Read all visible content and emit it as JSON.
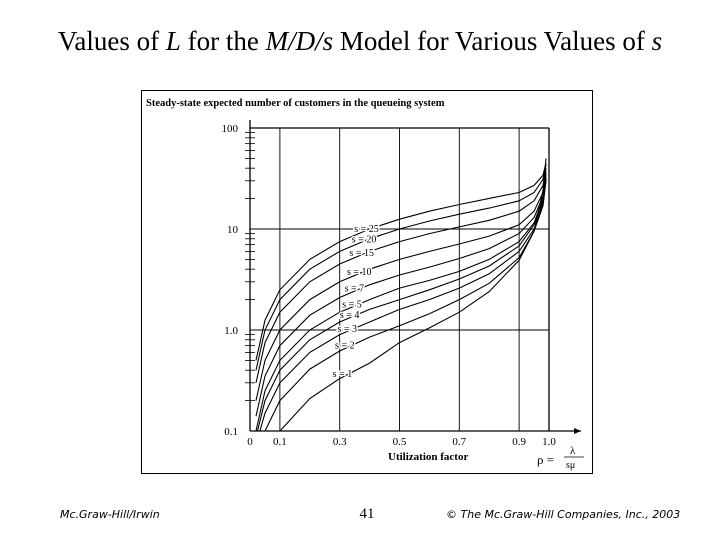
{
  "slide": {
    "title_pre": "Values of ",
    "title_L": "L",
    "title_mid": " for the ",
    "title_model": "M/D/s",
    "title_mid2": " Model for Various Values of ",
    "title_s": "s",
    "footer_left": "Mc.Graw-Hill/Irwin",
    "page_number": "41",
    "footer_right": "© The Mc.Graw-Hill Companies, Inc., 2003"
  },
  "chart_data": {
    "type": "line",
    "title": "Steady-state expected number of customers in the queueing system",
    "xlabel": "Utilization factor",
    "rho_formula": {
      "lhs": "ρ =",
      "num": "λ",
      "den": "sμ"
    },
    "xlim": [
      0,
      1.0
    ],
    "ylim": [
      0.1,
      100
    ],
    "y_scale": "log",
    "x_ticks": [
      0,
      0.1,
      0.3,
      0.5,
      0.7,
      0.9,
      1.0
    ],
    "x_tick_labels": [
      "0",
      "0.1",
      "0.3",
      "0.5",
      "0.7",
      "0.9",
      "1.0"
    ],
    "y_ticks": [
      0.1,
      1.0,
      10,
      100
    ],
    "y_tick_labels": [
      "0.1",
      "1.0",
      "10",
      "100"
    ],
    "grid": true,
    "series": [
      {
        "name": "s = 25",
        "x": [
          0.02,
          0.05,
          0.1,
          0.2,
          0.3,
          0.4,
          0.5,
          0.6,
          0.7,
          0.8,
          0.9,
          0.95,
          0.98,
          0.99
        ],
        "values": [
          0.5,
          1.25,
          2.5,
          5,
          7.5,
          10,
          12.5,
          15,
          17.5,
          20.1,
          23,
          27,
          34,
          45
        ]
      },
      {
        "name": "s = 20",
        "x": [
          0.02,
          0.05,
          0.1,
          0.2,
          0.3,
          0.4,
          0.5,
          0.6,
          0.7,
          0.8,
          0.9,
          0.95,
          0.98,
          0.99
        ],
        "values": [
          0.4,
          1.0,
          2.0,
          4,
          6,
          8,
          10,
          12,
          14,
          16.1,
          19,
          23,
          31,
          43
        ]
      },
      {
        "name": "s = 15",
        "x": [
          0.02,
          0.05,
          0.1,
          0.2,
          0.3,
          0.4,
          0.5,
          0.6,
          0.7,
          0.8,
          0.9,
          0.95,
          0.98,
          0.99
        ],
        "values": [
          0.3,
          0.75,
          1.5,
          3,
          4.5,
          6,
          7.5,
          9,
          10.5,
          12.2,
          15,
          19,
          27,
          40
        ]
      },
      {
        "name": "s = 10",
        "x": [
          0.02,
          0.05,
          0.1,
          0.2,
          0.3,
          0.4,
          0.5,
          0.6,
          0.7,
          0.8,
          0.9,
          0.95,
          0.98,
          0.99
        ],
        "values": [
          0.2,
          0.5,
          1.0,
          2,
          3,
          4,
          5,
          6,
          7.1,
          8.5,
          11,
          15,
          23,
          37
        ]
      },
      {
        "name": "s = 7",
        "x": [
          0.02,
          0.05,
          0.1,
          0.2,
          0.3,
          0.4,
          0.5,
          0.6,
          0.7,
          0.8,
          0.9,
          0.95,
          0.98,
          0.99
        ],
        "values": [
          0.14,
          0.35,
          0.7,
          1.4,
          2.1,
          2.8,
          3.5,
          4.2,
          5.1,
          6.4,
          9,
          13,
          21,
          35
        ]
      },
      {
        "name": "s = 5",
        "x": [
          0.02,
          0.05,
          0.1,
          0.2,
          0.3,
          0.4,
          0.5,
          0.6,
          0.7,
          0.8,
          0.9,
          0.95,
          0.98,
          0.99
        ],
        "values": [
          0.1,
          0.25,
          0.5,
          1.0,
          1.5,
          2.0,
          2.6,
          3.1,
          3.8,
          5.0,
          7.5,
          11.5,
          20,
          33
        ]
      },
      {
        "name": "s = 4",
        "x": [
          0.025,
          0.05,
          0.1,
          0.2,
          0.3,
          0.4,
          0.5,
          0.6,
          0.7,
          0.8,
          0.9,
          0.95,
          0.98,
          0.99
        ],
        "values": [
          0.1,
          0.2,
          0.4,
          0.8,
          1.2,
          1.6,
          2.0,
          2.5,
          3.2,
          4.3,
          6.8,
          11,
          19,
          32
        ]
      },
      {
        "name": "s = 3",
        "x": [
          0.033,
          0.05,
          0.1,
          0.2,
          0.3,
          0.4,
          0.5,
          0.6,
          0.7,
          0.8,
          0.9,
          0.95,
          0.98,
          0.99
        ],
        "values": [
          0.1,
          0.15,
          0.3,
          0.6,
          0.9,
          1.2,
          1.6,
          2.0,
          2.6,
          3.6,
          6.0,
          10,
          18,
          31
        ]
      },
      {
        "name": "s = 2",
        "x": [
          0.05,
          0.1,
          0.2,
          0.3,
          0.4,
          0.5,
          0.6,
          0.7,
          0.8,
          0.9,
          0.95,
          0.98,
          0.99
        ],
        "values": [
          0.1,
          0.2,
          0.41,
          0.62,
          0.85,
          1.1,
          1.45,
          2.0,
          2.9,
          5.2,
          9.5,
          17,
          30
        ]
      },
      {
        "name": "s = 1",
        "x": [
          0.1,
          0.2,
          0.3,
          0.4,
          0.5,
          0.6,
          0.7,
          0.8,
          0.9,
          0.95,
          0.98,
          0.99
        ],
        "values": [
          0.1,
          0.21,
          0.33,
          0.47,
          0.75,
          1.05,
          1.5,
          2.4,
          4.9,
          9.5,
          24,
          50
        ]
      }
    ]
  }
}
